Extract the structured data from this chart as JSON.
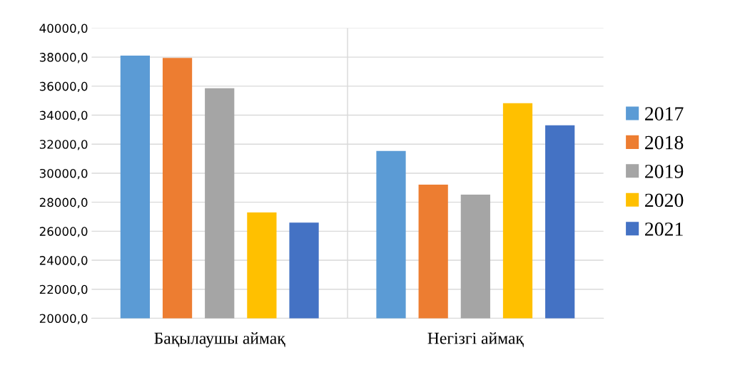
{
  "chart_data": {
    "type": "bar",
    "categories": [
      "Бақылаушы аймақ",
      "Негізгі аймақ"
    ],
    "series": [
      {
        "name": "2017",
        "color": "#5b9bd5",
        "values": [
          38100,
          31530
        ]
      },
      {
        "name": "2018",
        "color": "#ed7d31",
        "values": [
          37950,
          29210
        ]
      },
      {
        "name": "2019",
        "color": "#a5a5a5",
        "values": [
          35860,
          28520
        ]
      },
      {
        "name": "2020",
        "color": "#ffc000",
        "values": [
          27290,
          34830
        ]
      },
      {
        "name": "2021",
        "color": "#4472c4",
        "values": [
          26600,
          33300
        ]
      }
    ],
    "ylim": [
      20000,
      40000
    ],
    "yticks": [
      {
        "value": 20000,
        "label": "20000,0"
      },
      {
        "value": 22000,
        "label": "22000,0"
      },
      {
        "value": 24000,
        "label": "24000,0"
      },
      {
        "value": 26000,
        "label": "26000,0"
      },
      {
        "value": 28000,
        "label": "28000,0"
      },
      {
        "value": 30000,
        "label": "30000,0"
      },
      {
        "value": 32000,
        "label": "32000,0"
      },
      {
        "value": 34000,
        "label": "34000,0"
      },
      {
        "value": 36000,
        "label": "36000,0"
      },
      {
        "value": 38000,
        "label": "38000,0"
      },
      {
        "value": 40000,
        "label": "40000,0"
      }
    ],
    "grid": true,
    "legend": "right"
  }
}
